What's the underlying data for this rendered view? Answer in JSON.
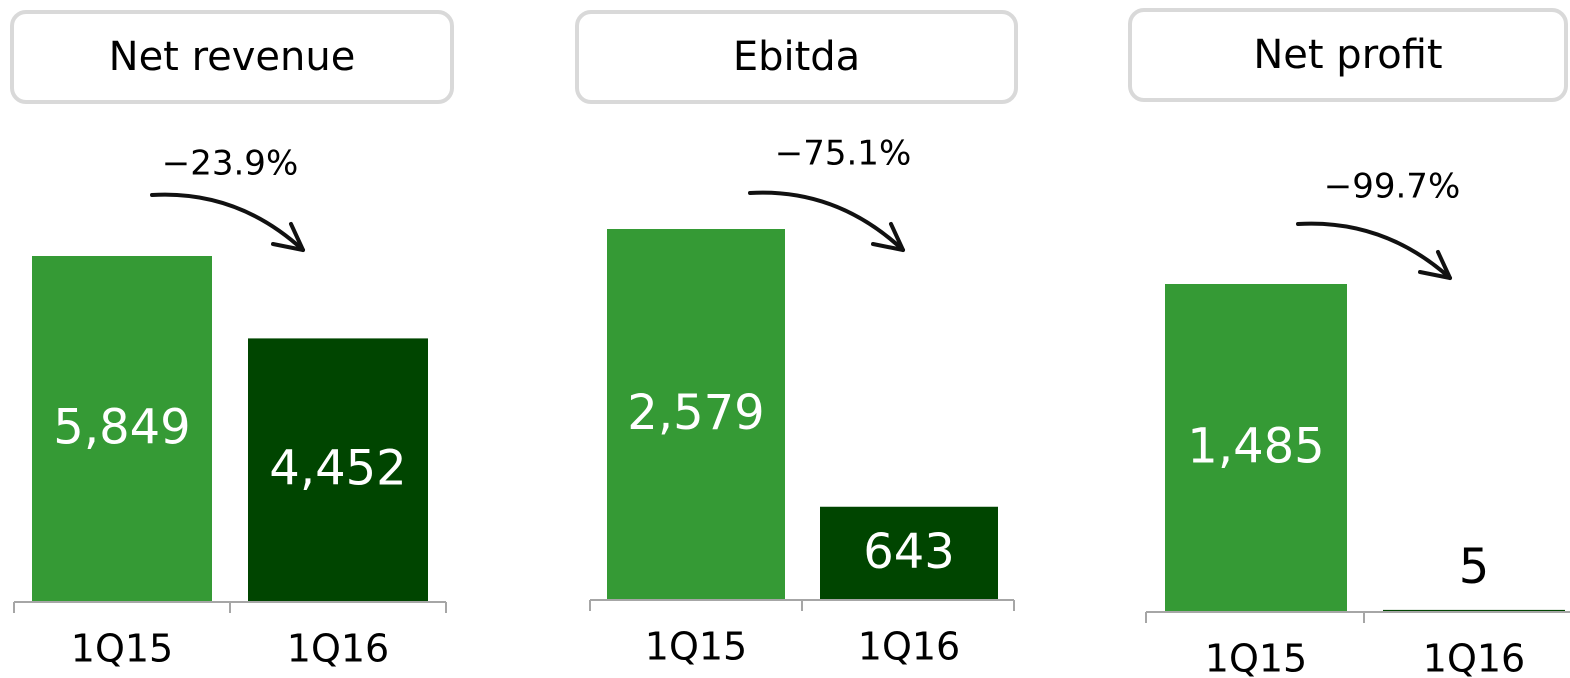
{
  "chart_data": [
    {
      "type": "bar",
      "title": "Net revenue",
      "annotation": "−23.9%",
      "categories": [
        "1Q15",
        "1Q16"
      ],
      "values": [
        5849,
        4452
      ],
      "value_labels": [
        "5,849",
        "4,452"
      ],
      "colors": [
        "#359a35",
        "#004500"
      ]
    },
    {
      "type": "bar",
      "title": "Ebitda",
      "annotation": "−75.1%",
      "categories": [
        "1Q15",
        "1Q16"
      ],
      "values": [
        2579,
        643
      ],
      "value_labels": [
        "2,579",
        "643"
      ],
      "colors": [
        "#359a35",
        "#004500"
      ]
    },
    {
      "type": "bar",
      "title": "Net profit",
      "annotation": "−99.7%",
      "categories": [
        "1Q15",
        "1Q16"
      ],
      "values": [
        1485,
        5
      ],
      "value_labels": [
        "1,485",
        "5"
      ],
      "colors": [
        "#359a35",
        "#004500"
      ]
    }
  ]
}
